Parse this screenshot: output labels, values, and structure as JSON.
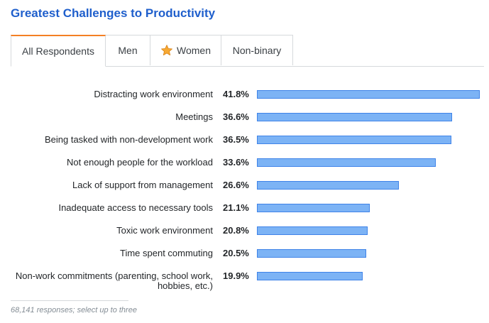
{
  "title": "Greatest Challenges to Productivity",
  "tabs": [
    {
      "label": "All Respondents",
      "active": true
    },
    {
      "label": "Men",
      "active": false
    },
    {
      "label": "Women",
      "active": false,
      "icon": "star-icon"
    },
    {
      "label": "Non-binary",
      "active": false
    }
  ],
  "chart_data": {
    "type": "bar",
    "orientation": "horizontal",
    "title": "Greatest Challenges to Productivity",
    "categories": [
      "Distracting work environment",
      "Meetings",
      "Being tasked with non-development work",
      "Not enough people for the workload",
      "Lack of support from management",
      "Inadequate access to necessary tools",
      "Toxic work environment",
      "Time spent commuting",
      "Non-work commitments (parenting, school work, hobbies, etc.)"
    ],
    "values": [
      41.8,
      36.6,
      36.5,
      33.6,
      26.6,
      21.1,
      20.8,
      20.5,
      19.9
    ],
    "value_labels": [
      "41.8%",
      "36.6%",
      "36.5%",
      "33.6%",
      "26.6%",
      "21.1%",
      "20.8%",
      "20.5%",
      "19.9%"
    ],
    "bar_color": "#7cb3f5",
    "bar_border_color": "#3f83e8",
    "grid": false
  },
  "footnote": "68,141 responses; select up to three",
  "colors": {
    "title": "#1f5fcc",
    "active_tab_accent": "#f48024"
  }
}
